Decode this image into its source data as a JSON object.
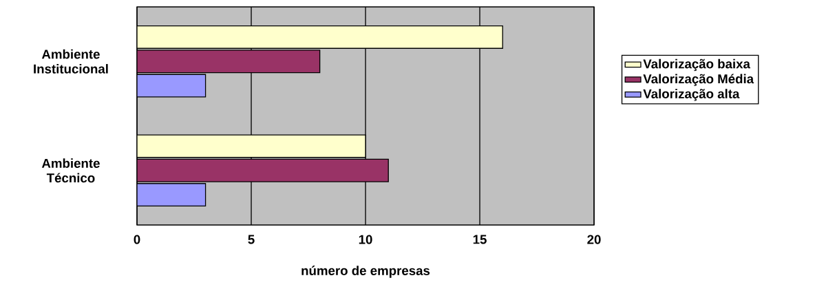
{
  "chart_data": {
    "type": "bar",
    "orientation": "horizontal",
    "xlabel": "número de empresas",
    "categories": [
      "Ambiente Institucional",
      "Ambiente Técnico"
    ],
    "series": [
      {
        "name": "Valorização baixa",
        "color": "#ffffcc",
        "values": [
          16,
          10
        ]
      },
      {
        "name": "Valorização Média",
        "color": "#993366",
        "values": [
          8,
          11
        ]
      },
      {
        "name": "Valorização alta",
        "color": "#9999ff",
        "values": [
          3,
          3
        ]
      }
    ],
    "xlim": [
      0,
      20
    ],
    "xticks": [
      0,
      5,
      10,
      15,
      20
    ],
    "grid": "x",
    "legend": "right"
  }
}
